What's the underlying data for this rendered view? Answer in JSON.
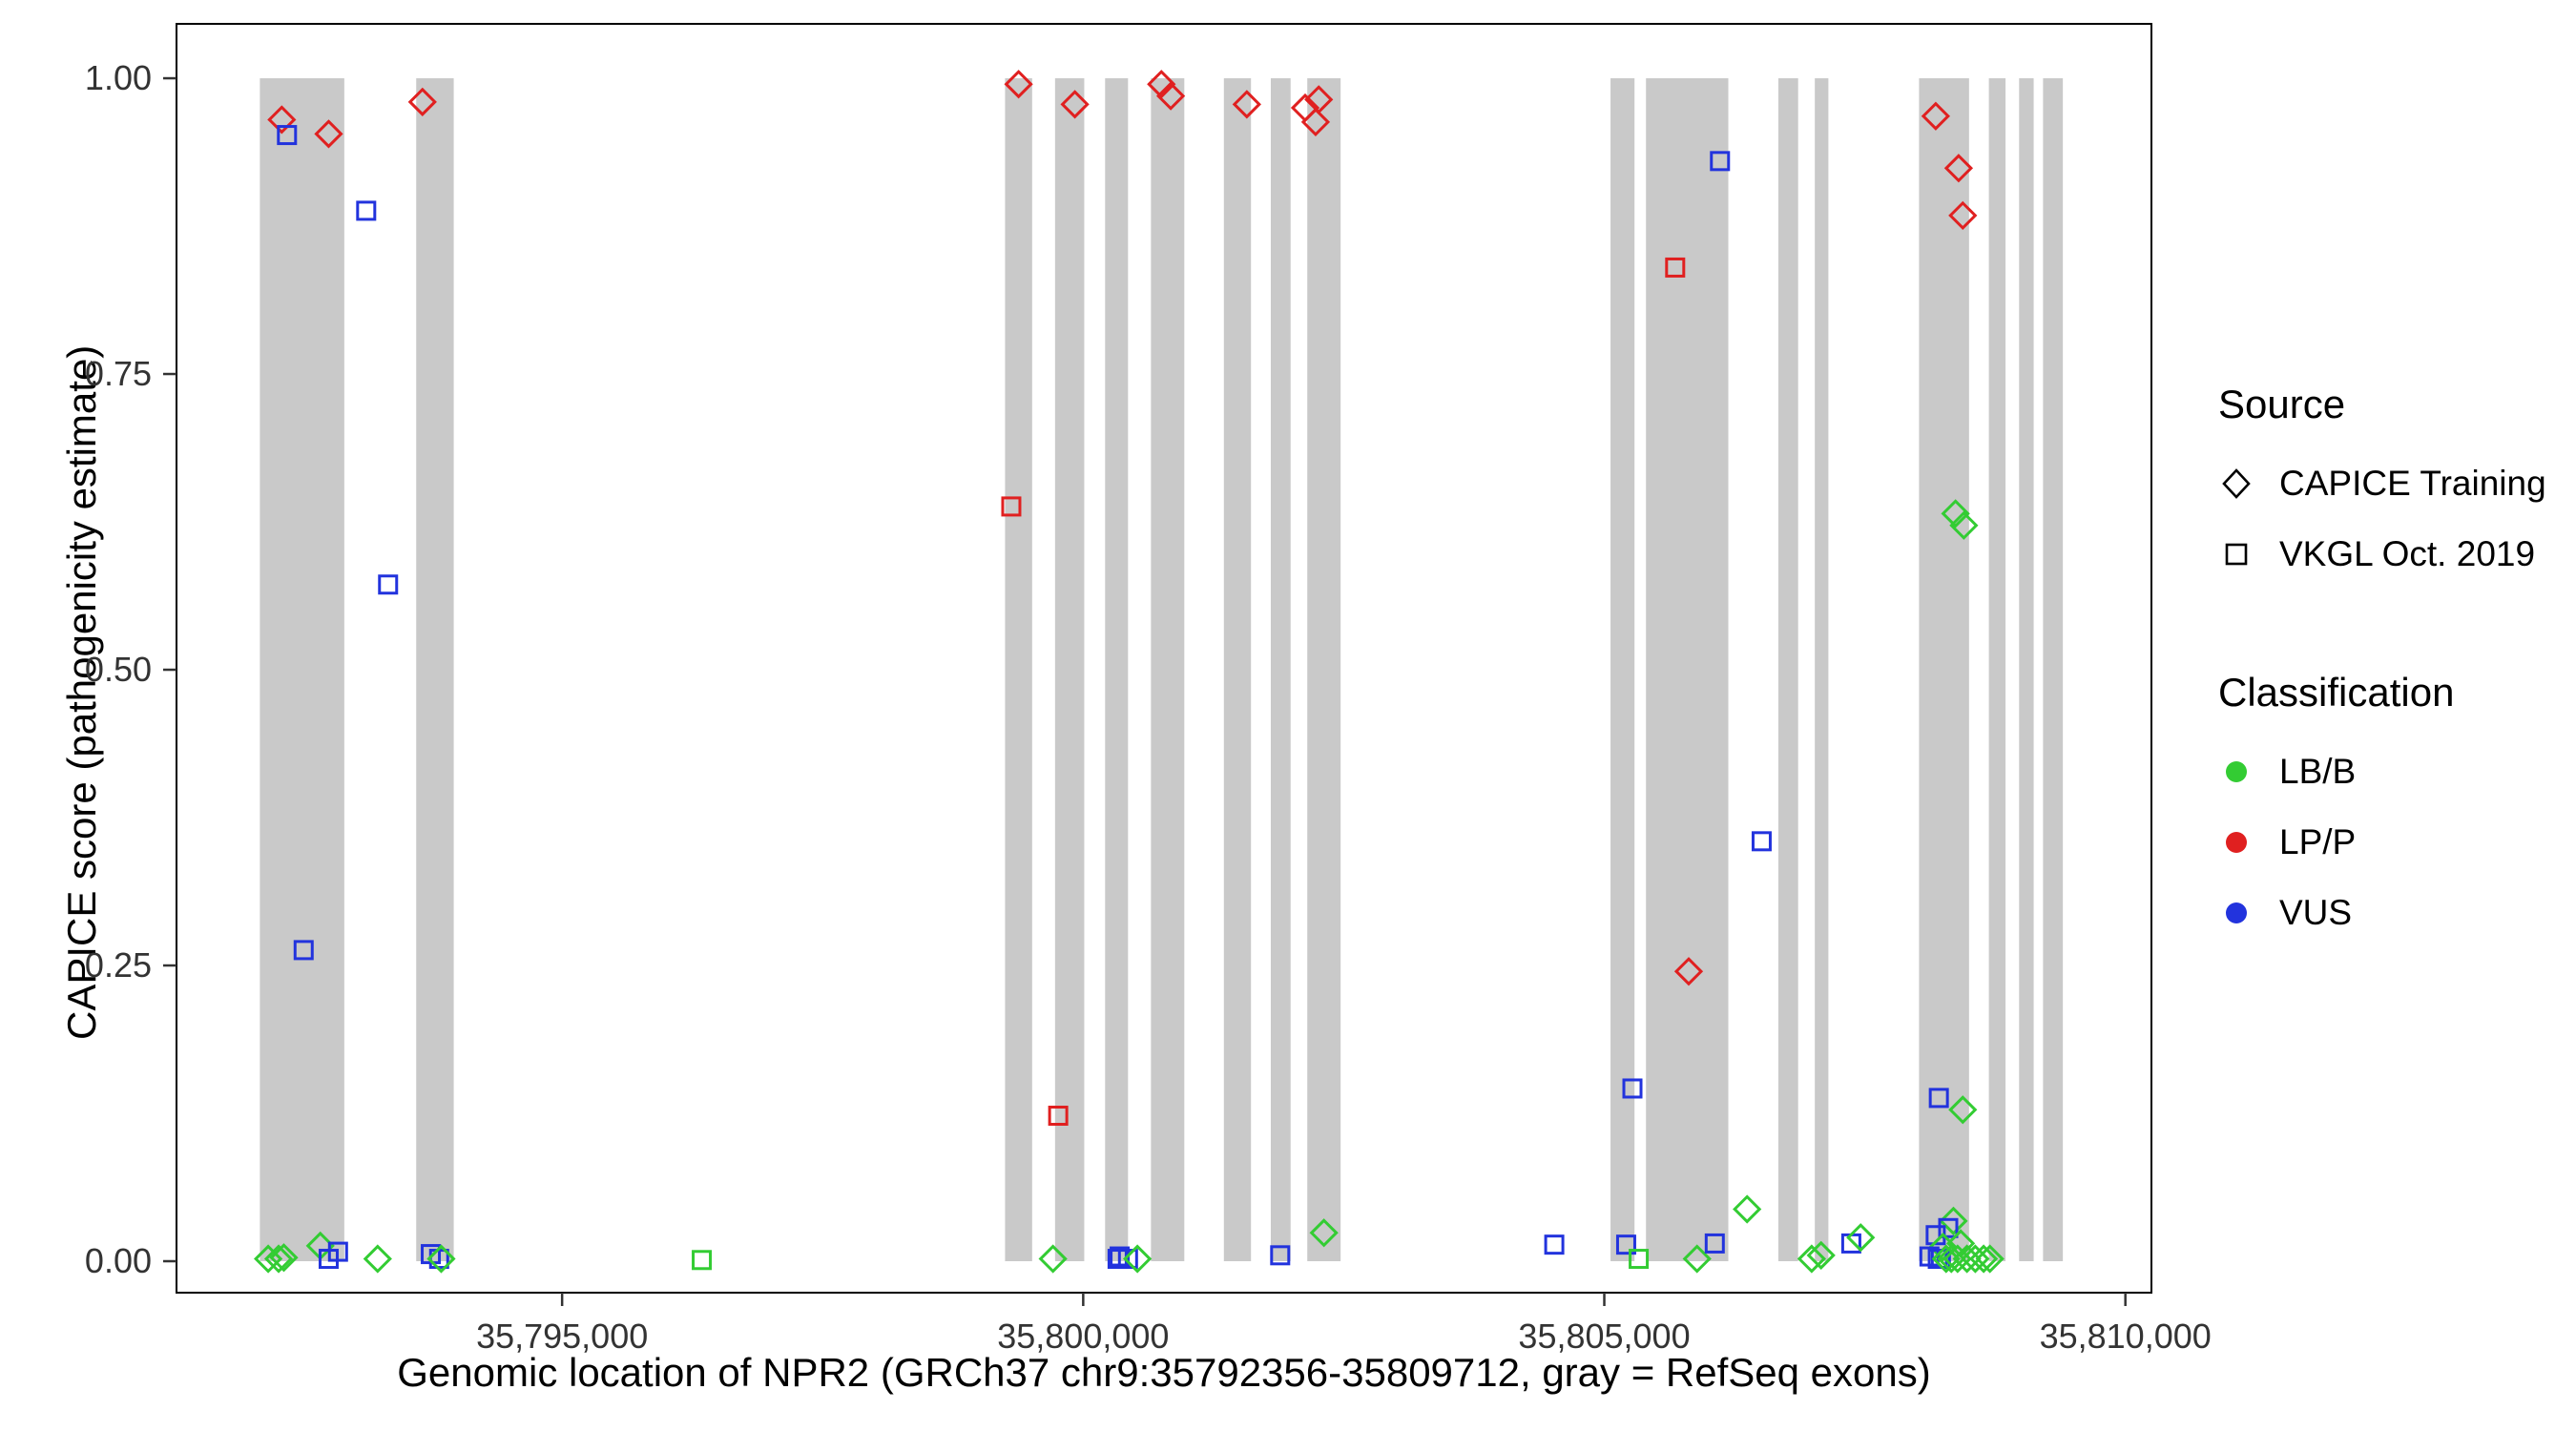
{
  "chart_data": {
    "type": "scatter",
    "title": "",
    "xlabel": "Genomic location of NPR2 (GRCh37 chr9:35792356-35809712, gray = RefSeq exons)",
    "ylabel": "CAPICE score (pathogenicity estimate)",
    "xlim": [
      35791300,
      35810250
    ],
    "ylim": [
      -0.0266,
      1.046
    ],
    "grid": false,
    "legend_position": "right",
    "x_ticks": [
      {
        "value": 35795000,
        "label": "35,795,000"
      },
      {
        "value": 35800000,
        "label": "35,800,000"
      },
      {
        "value": 35805000,
        "label": "35,805,000"
      },
      {
        "value": 35810000,
        "label": "35,810,000"
      }
    ],
    "y_ticks": [
      {
        "value": 0.0,
        "label": "0.00"
      },
      {
        "value": 0.25,
        "label": "0.25"
      },
      {
        "value": 0.5,
        "label": "0.50"
      },
      {
        "value": 0.75,
        "label": "0.75"
      },
      {
        "value": 1.0,
        "label": "1.00"
      }
    ],
    "band_color": "#C9C9C9",
    "band_y_range": [
      0,
      1
    ],
    "exon_bands": [
      [
        35792100,
        35792910
      ],
      [
        35793600,
        35793960
      ],
      [
        35799250,
        35799510
      ],
      [
        35799730,
        35800010
      ],
      [
        35800210,
        35800430
      ],
      [
        35800650,
        35800970
      ],
      [
        35801350,
        35801610
      ],
      [
        35801800,
        35801990
      ],
      [
        35802150,
        35802470
      ],
      [
        35805060,
        35805290
      ],
      [
        35805400,
        35806190
      ],
      [
        35806670,
        35806860
      ],
      [
        35807020,
        35807150
      ],
      [
        35808020,
        35808500
      ],
      [
        35808690,
        35808850
      ],
      [
        35808980,
        35809120
      ],
      [
        35809210,
        35809400
      ]
    ],
    "series_colors": {
      "LB/B": "#33CC33",
      "LP/P": "#E02020",
      "VUS": "#2233DD"
    },
    "shapes": {
      "CAPICE Training": "diamond",
      "VKGL Oct. 2019": "square"
    },
    "points": [
      {
        "x": 35792310,
        "y": 0.965,
        "source": "CAPICE Training",
        "classification": "LP/P"
      },
      {
        "x": 35792360,
        "y": 0.952,
        "source": "VKGL Oct. 2019",
        "classification": "VUS"
      },
      {
        "x": 35792760,
        "y": 0.953,
        "source": "CAPICE Training",
        "classification": "LP/P"
      },
      {
        "x": 35793120,
        "y": 0.888,
        "source": "VKGL Oct. 2019",
        "classification": "VUS"
      },
      {
        "x": 35793660,
        "y": 0.98,
        "source": "CAPICE Training",
        "classification": "LP/P"
      },
      {
        "x": 35793330,
        "y": 0.572,
        "source": "VKGL Oct. 2019",
        "classification": "VUS"
      },
      {
        "x": 35792520,
        "y": 0.263,
        "source": "VKGL Oct. 2019",
        "classification": "VUS"
      },
      {
        "x": 35792180,
        "y": 0.002,
        "source": "CAPICE Training",
        "classification": "LB/B"
      },
      {
        "x": 35792280,
        "y": 0.002,
        "source": "CAPICE Training",
        "classification": "LB/B"
      },
      {
        "x": 35792330,
        "y": 0.003,
        "source": "CAPICE Training",
        "classification": "LB/B"
      },
      {
        "x": 35792680,
        "y": 0.013,
        "source": "CAPICE Training",
        "classification": "LB/B"
      },
      {
        "x": 35792760,
        "y": 0.002,
        "source": "VKGL Oct. 2019",
        "classification": "VUS"
      },
      {
        "x": 35792850,
        "y": 0.008,
        "source": "VKGL Oct. 2019",
        "classification": "VUS"
      },
      {
        "x": 35793230,
        "y": 0.002,
        "source": "CAPICE Training",
        "classification": "LB/B"
      },
      {
        "x": 35793740,
        "y": 0.006,
        "source": "VKGL Oct. 2019",
        "classification": "VUS"
      },
      {
        "x": 35793820,
        "y": 0.002,
        "source": "VKGL Oct. 2019",
        "classification": "VUS"
      },
      {
        "x": 35793840,
        "y": 0.002,
        "source": "CAPICE Training",
        "classification": "LB/B"
      },
      {
        "x": 35796340,
        "y": 0.001,
        "source": "VKGL Oct. 2019",
        "classification": "LB/B"
      },
      {
        "x": 35799380,
        "y": 0.995,
        "source": "CAPICE Training",
        "classification": "LP/P"
      },
      {
        "x": 35799310,
        "y": 0.638,
        "source": "VKGL Oct. 2019",
        "classification": "LP/P"
      },
      {
        "x": 35799920,
        "y": 0.978,
        "source": "CAPICE Training",
        "classification": "LP/P"
      },
      {
        "x": 35799760,
        "y": 0.123,
        "source": "VKGL Oct. 2019",
        "classification": "LP/P"
      },
      {
        "x": 35799710,
        "y": 0.002,
        "source": "CAPICE Training",
        "classification": "LB/B"
      },
      {
        "x": 35800750,
        "y": 0.995,
        "source": "CAPICE Training",
        "classification": "LP/P"
      },
      {
        "x": 35800840,
        "y": 0.985,
        "source": "CAPICE Training",
        "classification": "LP/P"
      },
      {
        "x": 35800330,
        "y": 0.002,
        "source": "VKGL Oct. 2019",
        "classification": "VUS"
      },
      {
        "x": 35800350,
        "y": 0.004,
        "source": "VKGL Oct. 2019",
        "classification": "VUS"
      },
      {
        "x": 35800430,
        "y": 0.002,
        "source": "VKGL Oct. 2019",
        "classification": "VUS"
      },
      {
        "x": 35800520,
        "y": 0.002,
        "source": "CAPICE Training",
        "classification": "LB/B"
      },
      {
        "x": 35801570,
        "y": 0.978,
        "source": "CAPICE Training",
        "classification": "LP/P"
      },
      {
        "x": 35802130,
        "y": 0.975,
        "source": "CAPICE Training",
        "classification": "LP/P"
      },
      {
        "x": 35802260,
        "y": 0.982,
        "source": "CAPICE Training",
        "classification": "LP/P"
      },
      {
        "x": 35802230,
        "y": 0.963,
        "source": "CAPICE Training",
        "classification": "LP/P"
      },
      {
        "x": 35801890,
        "y": 0.005,
        "source": "VKGL Oct. 2019",
        "classification": "VUS"
      },
      {
        "x": 35802310,
        "y": 0.024,
        "source": "CAPICE Training",
        "classification": "LB/B"
      },
      {
        "x": 35804520,
        "y": 0.014,
        "source": "VKGL Oct. 2019",
        "classification": "VUS"
      },
      {
        "x": 35805210,
        "y": 0.014,
        "source": "VKGL Oct. 2019",
        "classification": "VUS"
      },
      {
        "x": 35805270,
        "y": 0.146,
        "source": "VKGL Oct. 2019",
        "classification": "VUS"
      },
      {
        "x": 35805330,
        "y": 0.002,
        "source": "VKGL Oct. 2019",
        "classification": "LB/B"
      },
      {
        "x": 35805680,
        "y": 0.84,
        "source": "VKGL Oct. 2019",
        "classification": "LP/P"
      },
      {
        "x": 35805810,
        "y": 0.245,
        "source": "CAPICE Training",
        "classification": "LP/P"
      },
      {
        "x": 35805890,
        "y": 0.002,
        "source": "CAPICE Training",
        "classification": "LB/B"
      },
      {
        "x": 35806060,
        "y": 0.015,
        "source": "VKGL Oct. 2019",
        "classification": "VUS"
      },
      {
        "x": 35806110,
        "y": 0.93,
        "source": "VKGL Oct. 2019",
        "classification": "VUS"
      },
      {
        "x": 35806370,
        "y": 0.044,
        "source": "CAPICE Training",
        "classification": "LB/B"
      },
      {
        "x": 35806510,
        "y": 0.355,
        "source": "VKGL Oct. 2019",
        "classification": "VUS"
      },
      {
        "x": 35806990,
        "y": 0.002,
        "source": "CAPICE Training",
        "classification": "LB/B"
      },
      {
        "x": 35807080,
        "y": 0.005,
        "source": "CAPICE Training",
        "classification": "LB/B"
      },
      {
        "x": 35807370,
        "y": 0.015,
        "source": "VKGL Oct. 2019",
        "classification": "VUS"
      },
      {
        "x": 35807460,
        "y": 0.02,
        "source": "CAPICE Training",
        "classification": "LB/B"
      },
      {
        "x": 35808180,
        "y": 0.968,
        "source": "CAPICE Training",
        "classification": "LP/P"
      },
      {
        "x": 35808400,
        "y": 0.924,
        "source": "CAPICE Training",
        "classification": "LP/P"
      },
      {
        "x": 35808440,
        "y": 0.884,
        "source": "CAPICE Training",
        "classification": "LP/P"
      },
      {
        "x": 35808370,
        "y": 0.632,
        "source": "CAPICE Training",
        "classification": "LB/B"
      },
      {
        "x": 35808450,
        "y": 0.622,
        "source": "CAPICE Training",
        "classification": "LB/B"
      },
      {
        "x": 35808210,
        "y": 0.138,
        "source": "VKGL Oct. 2019",
        "classification": "VUS"
      },
      {
        "x": 35808440,
        "y": 0.128,
        "source": "CAPICE Training",
        "classification": "LB/B"
      },
      {
        "x": 35808350,
        "y": 0.034,
        "source": "CAPICE Training",
        "classification": "LB/B"
      },
      {
        "x": 35808300,
        "y": 0.028,
        "source": "VKGL Oct. 2019",
        "classification": "VUS"
      },
      {
        "x": 35808180,
        "y": 0.022,
        "source": "VKGL Oct. 2019",
        "classification": "VUS"
      },
      {
        "x": 35808250,
        "y": 0.012,
        "source": "CAPICE Training",
        "classification": "LB/B"
      },
      {
        "x": 35808120,
        "y": 0.004,
        "source": "VKGL Oct. 2019",
        "classification": "VUS"
      },
      {
        "x": 35808200,
        "y": 0.002,
        "source": "VKGL Oct. 2019",
        "classification": "VUS"
      },
      {
        "x": 35808230,
        "y": 0.002,
        "source": "VKGL Oct. 2019",
        "classification": "VUS"
      },
      {
        "x": 35808280,
        "y": 0.002,
        "source": "CAPICE Training",
        "classification": "LB/B"
      },
      {
        "x": 35808330,
        "y": 0.002,
        "source": "CAPICE Training",
        "classification": "LB/B"
      },
      {
        "x": 35808390,
        "y": 0.002,
        "source": "CAPICE Training",
        "classification": "LB/B"
      },
      {
        "x": 35808420,
        "y": 0.015,
        "source": "CAPICE Training",
        "classification": "LB/B"
      },
      {
        "x": 35808480,
        "y": 0.002,
        "source": "CAPICE Training",
        "classification": "LB/B"
      },
      {
        "x": 35808560,
        "y": 0.002,
        "source": "CAPICE Training",
        "classification": "LB/B"
      },
      {
        "x": 35808640,
        "y": 0.002,
        "source": "CAPICE Training",
        "classification": "LB/B"
      },
      {
        "x": 35808700,
        "y": 0.002,
        "source": "CAPICE Training",
        "classification": "LB/B"
      }
    ]
  },
  "legend": {
    "source": {
      "title": "Source",
      "items": [
        {
          "label": "CAPICE Training",
          "shape": "diamond"
        },
        {
          "label": "VKGL Oct. 2019",
          "shape": "square"
        }
      ]
    },
    "classification": {
      "title": "Classification",
      "items": [
        {
          "label": "LB/B",
          "color": "#33CC33"
        },
        {
          "label": "LP/P",
          "color": "#E02020"
        },
        {
          "label": "VUS",
          "color": "#2233DD"
        }
      ]
    }
  }
}
